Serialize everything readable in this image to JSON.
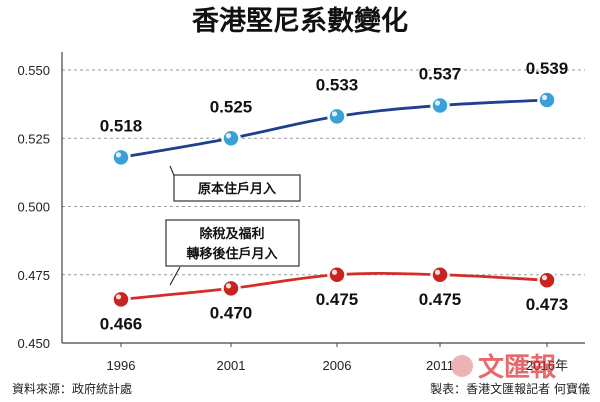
{
  "chart_data": {
    "type": "line",
    "title": "香港堅尼系數變化",
    "categories": [
      "1996",
      "2001",
      "2006",
      "2011",
      "2016年"
    ],
    "yticks": [
      "0.550",
      "0.525",
      "0.500",
      "0.475",
      "0.450"
    ],
    "ylim": [
      0.45,
      0.55
    ],
    "grid": true,
    "series": [
      {
        "name": "原本住戶月入",
        "values": [
          0.518,
          0.525,
          0.533,
          0.537,
          0.539
        ],
        "labels": [
          "0.518",
          "0.525",
          "0.533",
          "0.537",
          "0.539"
        ],
        "color": "#1f3f8f"
      },
      {
        "name": "除稅及福利轉移後住戶月入",
        "name_lines": [
          "除稅及福利",
          "轉移後住戶月入"
        ],
        "values": [
          0.466,
          0.47,
          0.475,
          0.475,
          0.473
        ],
        "labels": [
          "0.466",
          "0.470",
          "0.475",
          "0.475",
          "0.473"
        ],
        "color": "#d52d27"
      }
    ],
    "source": "資料來源：政府統計處",
    "credit": "製表：香港文匯報記者  何寶儀"
  },
  "watermark": {
    "text": "文匯報",
    "color": "#d9232a"
  },
  "colors": {
    "upper_line": "#1f3f8f",
    "lower_line": "#d52d27",
    "upper_marker": "#3aa0d8",
    "lower_marker": "#c9221f"
  }
}
